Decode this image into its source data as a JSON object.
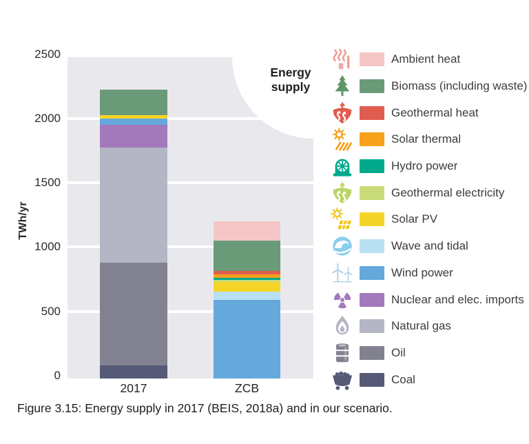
{
  "title": "Energy supply",
  "caption": "Figure 3.15: Energy supply in 2017 (BEIS, 2018a) and in our scenario.",
  "y_axis": {
    "label": "TWh/yr",
    "ticks": [
      "2500",
      "2000",
      "1500",
      "1000",
      "500",
      "0"
    ]
  },
  "colors": {
    "plot_background": "#e9e9ed",
    "gridline": "#ffffff",
    "page_background": "#ffffff"
  },
  "chart_data": {
    "type": "bar",
    "stacked": true,
    "title": "Energy supply",
    "ylabel": "TWh/yr",
    "ylim": [
      0,
      2500
    ],
    "grid": "horizontal white lines every 500",
    "legend_position": "right",
    "categories": [
      "2017",
      "ZCB"
    ],
    "series": [
      {
        "name": "Ambient heat",
        "icon": "heat-waves-icon",
        "color": "#f5c6c7",
        "icon_color": "#ee9b93",
        "values": [
          0,
          150
        ]
      },
      {
        "name": "Biomass (including waste)",
        "icon": "pine-tree-icon",
        "color": "#6b9a79",
        "icon_color": "#5d9468",
        "values": [
          200,
          240
        ]
      },
      {
        "name": "Geothermal heat",
        "icon": "geothermal-heat-icon",
        "color": "#e05c4f",
        "icon_color": "#e05c4f",
        "values": [
          0,
          25
        ]
      },
      {
        "name": "Solar thermal",
        "icon": "sun-rays-icon",
        "color": "#f7a11d",
        "icon_color": "#f7a11d",
        "values": [
          0,
          25
        ]
      },
      {
        "name": "Hydro power",
        "icon": "turbine-dome-icon",
        "color": "#00a98c",
        "icon_color": "#00a98c",
        "values": [
          0,
          15
        ]
      },
      {
        "name": "Geothermal electricity",
        "icon": "geothermal-electricity-icon",
        "color": "#c9dc77",
        "icon_color": "#bcd56a",
        "values": [
          0,
          20
        ]
      },
      {
        "name": "Solar PV",
        "icon": "sun-panel-icon",
        "color": "#f5d428",
        "icon_color": "#f0c51e",
        "values": [
          25,
          75
        ]
      },
      {
        "name": "Wave and tidal",
        "icon": "wave-icon",
        "color": "#b9e0f2",
        "icon_color": "#8bcdec",
        "values": [
          0,
          65
        ]
      },
      {
        "name": "Wind power",
        "icon": "wind-turbine-icon",
        "color": "#64a8dc",
        "icon_color": "#a9cfe8",
        "values": [
          50,
          610
        ]
      },
      {
        "name": "Nuclear and elec. imports",
        "icon": "radiation-icon",
        "color": "#a379bb",
        "icon_color": "#a379bb",
        "values": [
          175,
          0
        ]
      },
      {
        "name": "Natural gas",
        "icon": "flame-icon",
        "color": "#b4b6c5",
        "icon_color": "#b4b6c5",
        "values": [
          900,
          0
        ]
      },
      {
        "name": "Oil",
        "icon": "oil-barrel-icon",
        "color": "#82818f",
        "icon_color": "#82818f",
        "values": [
          800,
          0
        ]
      },
      {
        "name": "Coal",
        "icon": "coal-cart-icon",
        "color": "#565a76",
        "icon_color": "#565a76",
        "values": [
          100,
          0
        ]
      }
    ],
    "totals": {
      "2017": 2250,
      "ZCB": 1225
    }
  }
}
